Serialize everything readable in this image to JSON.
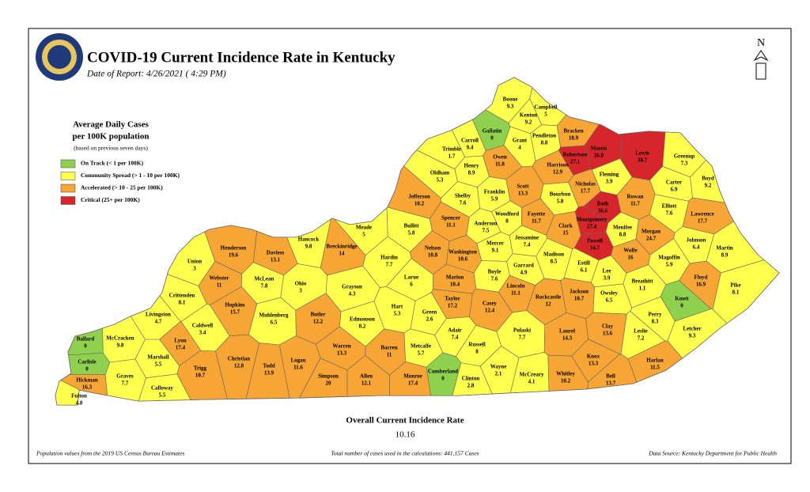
{
  "header": {
    "title": "COVID-19 Current Incidence Rate in Kentucky",
    "subtitle": "Date of Report: 4/26/2021 ( 4:29 PM)"
  },
  "north": "N",
  "legend": {
    "title": [
      "Average Daily Cases",
      "per 100K population"
    ],
    "note": "(based on previous seven days)",
    "items": [
      {
        "label": "On Track (< 1 per 100K)",
        "color": "#8fd14f"
      },
      {
        "label": "Community Spread (> 1 - 10 per 100K)",
        "color": "#ffff4d"
      },
      {
        "label": "Accelerated (> 10 - 25 per 100K)",
        "color": "#f7a535"
      },
      {
        "label": "Critical (25+ per 100K)",
        "color": "#d7262b"
      }
    ]
  },
  "counties": [
    {
      "name": "Ballard",
      "value": 0,
      "color": "#8fd14f"
    },
    {
      "name": "Carlisle",
      "value": 0,
      "color": "#8fd14f"
    },
    {
      "name": "McCracken",
      "value": 9.8,
      "color": "#ffff4d"
    },
    {
      "name": "Hickman",
      "value": 16.3,
      "color": "#f7a535"
    },
    {
      "name": "Fulton",
      "value": 4.8,
      "color": "#ffff4d"
    },
    {
      "name": "Graves",
      "value": 7.7,
      "color": "#ffff4d"
    },
    {
      "name": "Marshall",
      "value": 5.5,
      "color": "#ffff4d"
    },
    {
      "name": "Calloway",
      "value": 5.5,
      "color": "#ffff4d"
    },
    {
      "name": "Livingston",
      "value": 4.7,
      "color": "#ffff4d"
    },
    {
      "name": "Crittenden",
      "value": 8.1,
      "color": "#ffff4d"
    },
    {
      "name": "Lyon",
      "value": 17.4,
      "color": "#f7a535"
    },
    {
      "name": "Trigg",
      "value": 10.7,
      "color": "#f7a535"
    },
    {
      "name": "Caldwell",
      "value": 3.4,
      "color": "#ffff4d"
    },
    {
      "name": "Christian",
      "value": 12.8,
      "color": "#f7a535"
    },
    {
      "name": "Hopkins",
      "value": 15.7,
      "color": "#f7a535"
    },
    {
      "name": "Webster",
      "value": 11,
      "color": "#f7a535"
    },
    {
      "name": "Union",
      "value": 3,
      "color": "#ffff4d"
    },
    {
      "name": "Henderson",
      "value": 19.6,
      "color": "#f7a535"
    },
    {
      "name": "Daviess",
      "value": 13.1,
      "color": "#f7a535"
    },
    {
      "name": "McLean",
      "value": 7.8,
      "color": "#ffff4d"
    },
    {
      "name": "Muhlenberg",
      "value": 6.5,
      "color": "#ffff4d"
    },
    {
      "name": "Todd",
      "value": 13.9,
      "color": "#f7a535"
    },
    {
      "name": "Logan",
      "value": 11.6,
      "color": "#f7a535"
    },
    {
      "name": "Ohio",
      "value": 3,
      "color": "#ffff4d"
    },
    {
      "name": "Butler",
      "value": 12.2,
      "color": "#f7a535"
    },
    {
      "name": "Hancock",
      "value": 9.8,
      "color": "#ffff4d"
    },
    {
      "name": "Breckinridge",
      "value": 14,
      "color": "#f7a535"
    },
    {
      "name": "Grayson",
      "value": 4.3,
      "color": "#ffff4d"
    },
    {
      "name": "Edmonson",
      "value": 8.2,
      "color": "#ffff4d"
    },
    {
      "name": "Warren",
      "value": 13.3,
      "color": "#f7a535"
    },
    {
      "name": "Simpson",
      "value": 20,
      "color": "#f7a535"
    },
    {
      "name": "Allen",
      "value": 12.1,
      "color": "#f7a535"
    },
    {
      "name": "Meade",
      "value": 5,
      "color": "#ffff4d"
    },
    {
      "name": "Hardin",
      "value": 7.7,
      "color": "#ffff4d"
    },
    {
      "name": "Larue",
      "value": 6,
      "color": "#ffff4d"
    },
    {
      "name": "Hart",
      "value": 5.3,
      "color": "#ffff4d"
    },
    {
      "name": "Barren",
      "value": 11,
      "color": "#f7a535"
    },
    {
      "name": "Monroe",
      "value": 17.4,
      "color": "#f7a535"
    },
    {
      "name": "Metcalfe",
      "value": 5.7,
      "color": "#ffff4d"
    },
    {
      "name": "Green",
      "value": 2.6,
      "color": "#ffff4d"
    },
    {
      "name": "Cumberland",
      "value": 0,
      "color": "#8fd14f"
    },
    {
      "name": "Adair",
      "value": 7.4,
      "color": "#ffff4d"
    },
    {
      "name": "Taylor",
      "value": 17.2,
      "color": "#f7a535"
    },
    {
      "name": "Marion",
      "value": 10.4,
      "color": "#f7a535"
    },
    {
      "name": "Washington",
      "value": 10.6,
      "color": "#f7a535"
    },
    {
      "name": "Nelson",
      "value": 10.8,
      "color": "#f7a535"
    },
    {
      "name": "Bullitt",
      "value": 5.8,
      "color": "#ffff4d"
    },
    {
      "name": "Jefferson",
      "value": 10.2,
      "color": "#f7a535"
    },
    {
      "name": "Oldham",
      "value": 5.3,
      "color": "#ffff4d"
    },
    {
      "name": "Trimble",
      "value": 1.7,
      "color": "#ffff4d"
    },
    {
      "name": "Carroll",
      "value": 9.4,
      "color": "#ffff4d"
    },
    {
      "name": "Henry",
      "value": 8.9,
      "color": "#ffff4d"
    },
    {
      "name": "Shelby",
      "value": 7.6,
      "color": "#ffff4d"
    },
    {
      "name": "Spencer",
      "value": 11.1,
      "color": "#f7a535"
    },
    {
      "name": "Anderson",
      "value": 7.5,
      "color": "#ffff4d"
    },
    {
      "name": "Franklin",
      "value": 5.9,
      "color": "#ffff4d"
    },
    {
      "name": "Owen",
      "value": 11.8,
      "color": "#f7a535"
    },
    {
      "name": "Gallatin",
      "value": 0,
      "color": "#8fd14f"
    },
    {
      "name": "Boone",
      "value": 9.3,
      "color": "#ffff4d"
    },
    {
      "name": "Kenton",
      "value": 9.2,
      "color": "#ffff4d"
    },
    {
      "name": "Campbell",
      "value": 5,
      "color": "#ffff4d"
    },
    {
      "name": "Grant",
      "value": 4,
      "color": "#ffff4d"
    },
    {
      "name": "Pendleton",
      "value": 8.8,
      "color": "#ffff4d"
    },
    {
      "name": "Bracken",
      "value": 18.9,
      "color": "#f7a535"
    },
    {
      "name": "Mason",
      "value": 26.8,
      "color": "#d7262b"
    },
    {
      "name": "Robertson",
      "value": 27.1,
      "color": "#d7262b"
    },
    {
      "name": "Lewis",
      "value": 38.7,
      "color": "#d7262b"
    },
    {
      "name": "Greenup",
      "value": 7.3,
      "color": "#ffff4d"
    },
    {
      "name": "Boyd",
      "value": 9.2,
      "color": "#ffff4d"
    },
    {
      "name": "Carter",
      "value": 6.9,
      "color": "#ffff4d"
    },
    {
      "name": "Fleming",
      "value": 3.9,
      "color": "#ffff4d"
    },
    {
      "name": "Harrison",
      "value": 12.9,
      "color": "#f7a535"
    },
    {
      "name": "Scott",
      "value": 13.3,
      "color": "#f7a535"
    },
    {
      "name": "Woodford",
      "value": 8,
      "color": "#ffff4d"
    },
    {
      "name": "Fayette",
      "value": 11.7,
      "color": "#f7a535"
    },
    {
      "name": "Bourbon",
      "value": 5.8,
      "color": "#ffff4d"
    },
    {
      "name": "Nicholas",
      "value": 17.7,
      "color": "#f7a535"
    },
    {
      "name": "Bath",
      "value": 36.6,
      "color": "#d7262b"
    },
    {
      "name": "Rowan",
      "value": 11.7,
      "color": "#f7a535"
    },
    {
      "name": "Elliott",
      "value": 7.6,
      "color": "#ffff4d"
    },
    {
      "name": "Lawrence",
      "value": 17.7,
      "color": "#f7a535"
    },
    {
      "name": "Montgomery",
      "value": 27.4,
      "color": "#d7262b"
    },
    {
      "name": "Clark",
      "value": 15,
      "color": "#f7a535"
    },
    {
      "name": "Menifee",
      "value": 8.8,
      "color": "#ffff4d"
    },
    {
      "name": "Morgan",
      "value": 24.7,
      "color": "#f7a535"
    },
    {
      "name": "Johnson",
      "value": 6.4,
      "color": "#ffff4d"
    },
    {
      "name": "Martin",
      "value": 8.9,
      "color": "#ffff4d"
    },
    {
      "name": "Powell",
      "value": 34.7,
      "color": "#d7262b"
    },
    {
      "name": "Wolfe",
      "value": 16,
      "color": "#f7a535"
    },
    {
      "name": "Magoffin",
      "value": 5.9,
      "color": "#ffff4d"
    },
    {
      "name": "Mercer",
      "value": 9.1,
      "color": "#ffff4d"
    },
    {
      "name": "Jessamine",
      "value": 7.4,
      "color": "#ffff4d"
    },
    {
      "name": "Garrard",
      "value": 4.9,
      "color": "#ffff4d"
    },
    {
      "name": "Madison",
      "value": 8.5,
      "color": "#ffff4d"
    },
    {
      "name": "Estill",
      "value": 6.1,
      "color": "#ffff4d"
    },
    {
      "name": "Lee",
      "value": 3.9,
      "color": "#ffff4d"
    },
    {
      "name": "Boyle",
      "value": 7.6,
      "color": "#ffff4d"
    },
    {
      "name": "Lincoln",
      "value": 11.1,
      "color": "#f7a535"
    },
    {
      "name": "Rockcastle",
      "value": 12,
      "color": "#f7a535"
    },
    {
      "name": "Jackson",
      "value": 10.7,
      "color": "#f7a535"
    },
    {
      "name": "Owsley",
      "value": 6.5,
      "color": "#ffff4d"
    },
    {
      "name": "Breathitt",
      "value": 1.1,
      "color": "#ffff4d"
    },
    {
      "name": "Floyd",
      "value": 16.9,
      "color": "#f7a535"
    },
    {
      "name": "Pike",
      "value": 8.1,
      "color": "#ffff4d"
    },
    {
      "name": "Knott",
      "value": 0,
      "color": "#8fd14f"
    },
    {
      "name": "Perry",
      "value": 8.3,
      "color": "#ffff4d"
    },
    {
      "name": "Letcher",
      "value": 9.3,
      "color": "#ffff4d"
    },
    {
      "name": "Leslie",
      "value": 7.2,
      "color": "#ffff4d"
    },
    {
      "name": "Clay",
      "value": 13.6,
      "color": "#f7a535"
    },
    {
      "name": "Harlan",
      "value": 11.5,
      "color": "#f7a535"
    },
    {
      "name": "Bell",
      "value": 13.7,
      "color": "#f7a535"
    },
    {
      "name": "Knox",
      "value": 13.3,
      "color": "#f7a535"
    },
    {
      "name": "Laurel",
      "value": 14.3,
      "color": "#f7a535"
    },
    {
      "name": "Whitley",
      "value": 10.2,
      "color": "#f7a535"
    },
    {
      "name": "McCreary",
      "value": 4.1,
      "color": "#ffff4d"
    },
    {
      "name": "Pulaski",
      "value": 7.7,
      "color": "#ffff4d"
    },
    {
      "name": "Wayne",
      "value": 2.1,
      "color": "#ffff4d"
    },
    {
      "name": "Clinton",
      "value": 2.8,
      "color": "#ffff4d"
    },
    {
      "name": "Russell",
      "value": 8,
      "color": "#ffff4d"
    },
    {
      "name": "Casey",
      "value": 12.4,
      "color": "#f7a535"
    }
  ],
  "summary": {
    "label": "Overall Current Incidence Rate",
    "value": 10.16
  },
  "footer": {
    "left": "Population values from the 2019 US Census Bureau Estimates",
    "center": "Total number of cases used in the calculations: 441,157 Cases",
    "right": "Data Source: Kentucky Department for Public Health"
  }
}
